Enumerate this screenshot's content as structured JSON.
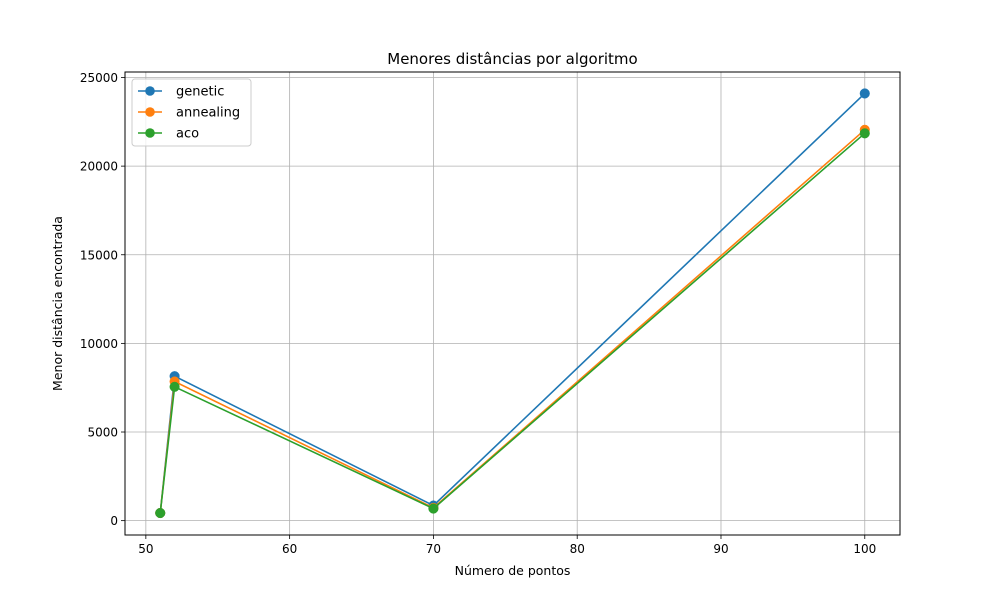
{
  "chart_data": {
    "type": "line",
    "title": "Menores distâncias por algoritmo",
    "xlabel": "Número de pontos",
    "ylabel": "Menor distância encontrada",
    "x": [
      51,
      52,
      70,
      100
    ],
    "xlim": [
      48.55,
      102.45
    ],
    "ylim": [
      -810,
      25310
    ],
    "xticks": [
      50,
      60,
      70,
      80,
      90,
      100
    ],
    "yticks": [
      0,
      5000,
      10000,
      15000,
      20000,
      25000
    ],
    "xtick_labels": [
      "50",
      "60",
      "70",
      "80",
      "90",
      "100"
    ],
    "ytick_labels": [
      "0",
      "5000",
      "10000",
      "15000",
      "20000",
      "25000"
    ],
    "grid": true,
    "legend_position": "top-left",
    "series": [
      {
        "name": "genetic",
        "color": "#1f77b4",
        "values": [
          430,
          8150,
          850,
          24100
        ]
      },
      {
        "name": "annealing",
        "color": "#ff7f0e",
        "values": [
          430,
          7850,
          720,
          22050
        ]
      },
      {
        "name": "aco",
        "color": "#2ca02c",
        "values": [
          430,
          7550,
          680,
          21850
        ]
      }
    ]
  }
}
